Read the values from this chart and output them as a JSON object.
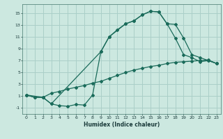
{
  "xlabel": "Humidex (Indice chaleur)",
  "bg_color": "#cce8e0",
  "grid_color": "#aacfc8",
  "line_color": "#1a6b5a",
  "line1_x": [
    0,
    1,
    2,
    3,
    4,
    5,
    6,
    7,
    8,
    9,
    10,
    11,
    12,
    13,
    14,
    15,
    16,
    17,
    18,
    19,
    20,
    21,
    22,
    23
  ],
  "line1_y": [
    1.2,
    0.8,
    0.8,
    -0.3,
    -0.6,
    -0.7,
    -0.4,
    -0.5,
    1.2,
    8.5,
    11.0,
    12.2,
    13.2,
    13.7,
    14.7,
    15.3,
    15.2,
    13.2,
    10.8,
    8.0,
    7.5,
    6.8,
    7.0,
    6.5
  ],
  "line2_x": [
    0,
    1,
    2,
    3,
    4,
    5,
    6,
    7,
    8,
    9,
    10,
    11,
    12,
    13,
    14,
    15,
    16,
    17,
    18,
    19,
    20,
    21,
    22,
    23
  ],
  "line2_y": [
    1.2,
    0.8,
    0.8,
    1.5,
    1.8,
    2.2,
    2.5,
    2.8,
    3.2,
    3.5,
    4.0,
    4.5,
    5.0,
    5.4,
    5.7,
    6.0,
    6.2,
    6.5,
    6.7,
    6.8,
    6.9,
    7.0,
    7.1,
    6.5
  ],
  "line3_x": [
    0,
    2,
    3,
    9,
    10,
    12,
    13,
    14,
    15,
    16,
    17,
    18,
    19,
    20,
    21,
    22,
    23
  ],
  "line3_y": [
    1.2,
    0.8,
    -0.3,
    8.5,
    11.0,
    13.2,
    13.7,
    14.7,
    15.3,
    15.2,
    13.2,
    13.1,
    10.8,
    8.0,
    7.5,
    7.0,
    6.5
  ],
  "xlim": [
    -0.5,
    23.5
  ],
  "ylim": [
    -2,
    16.5
  ],
  "yticks": [
    -1,
    1,
    3,
    5,
    7,
    9,
    11,
    13,
    15
  ],
  "xticks": [
    0,
    1,
    2,
    3,
    4,
    5,
    6,
    7,
    8,
    9,
    10,
    11,
    12,
    13,
    14,
    15,
    16,
    17,
    18,
    19,
    20,
    21,
    22,
    23
  ]
}
